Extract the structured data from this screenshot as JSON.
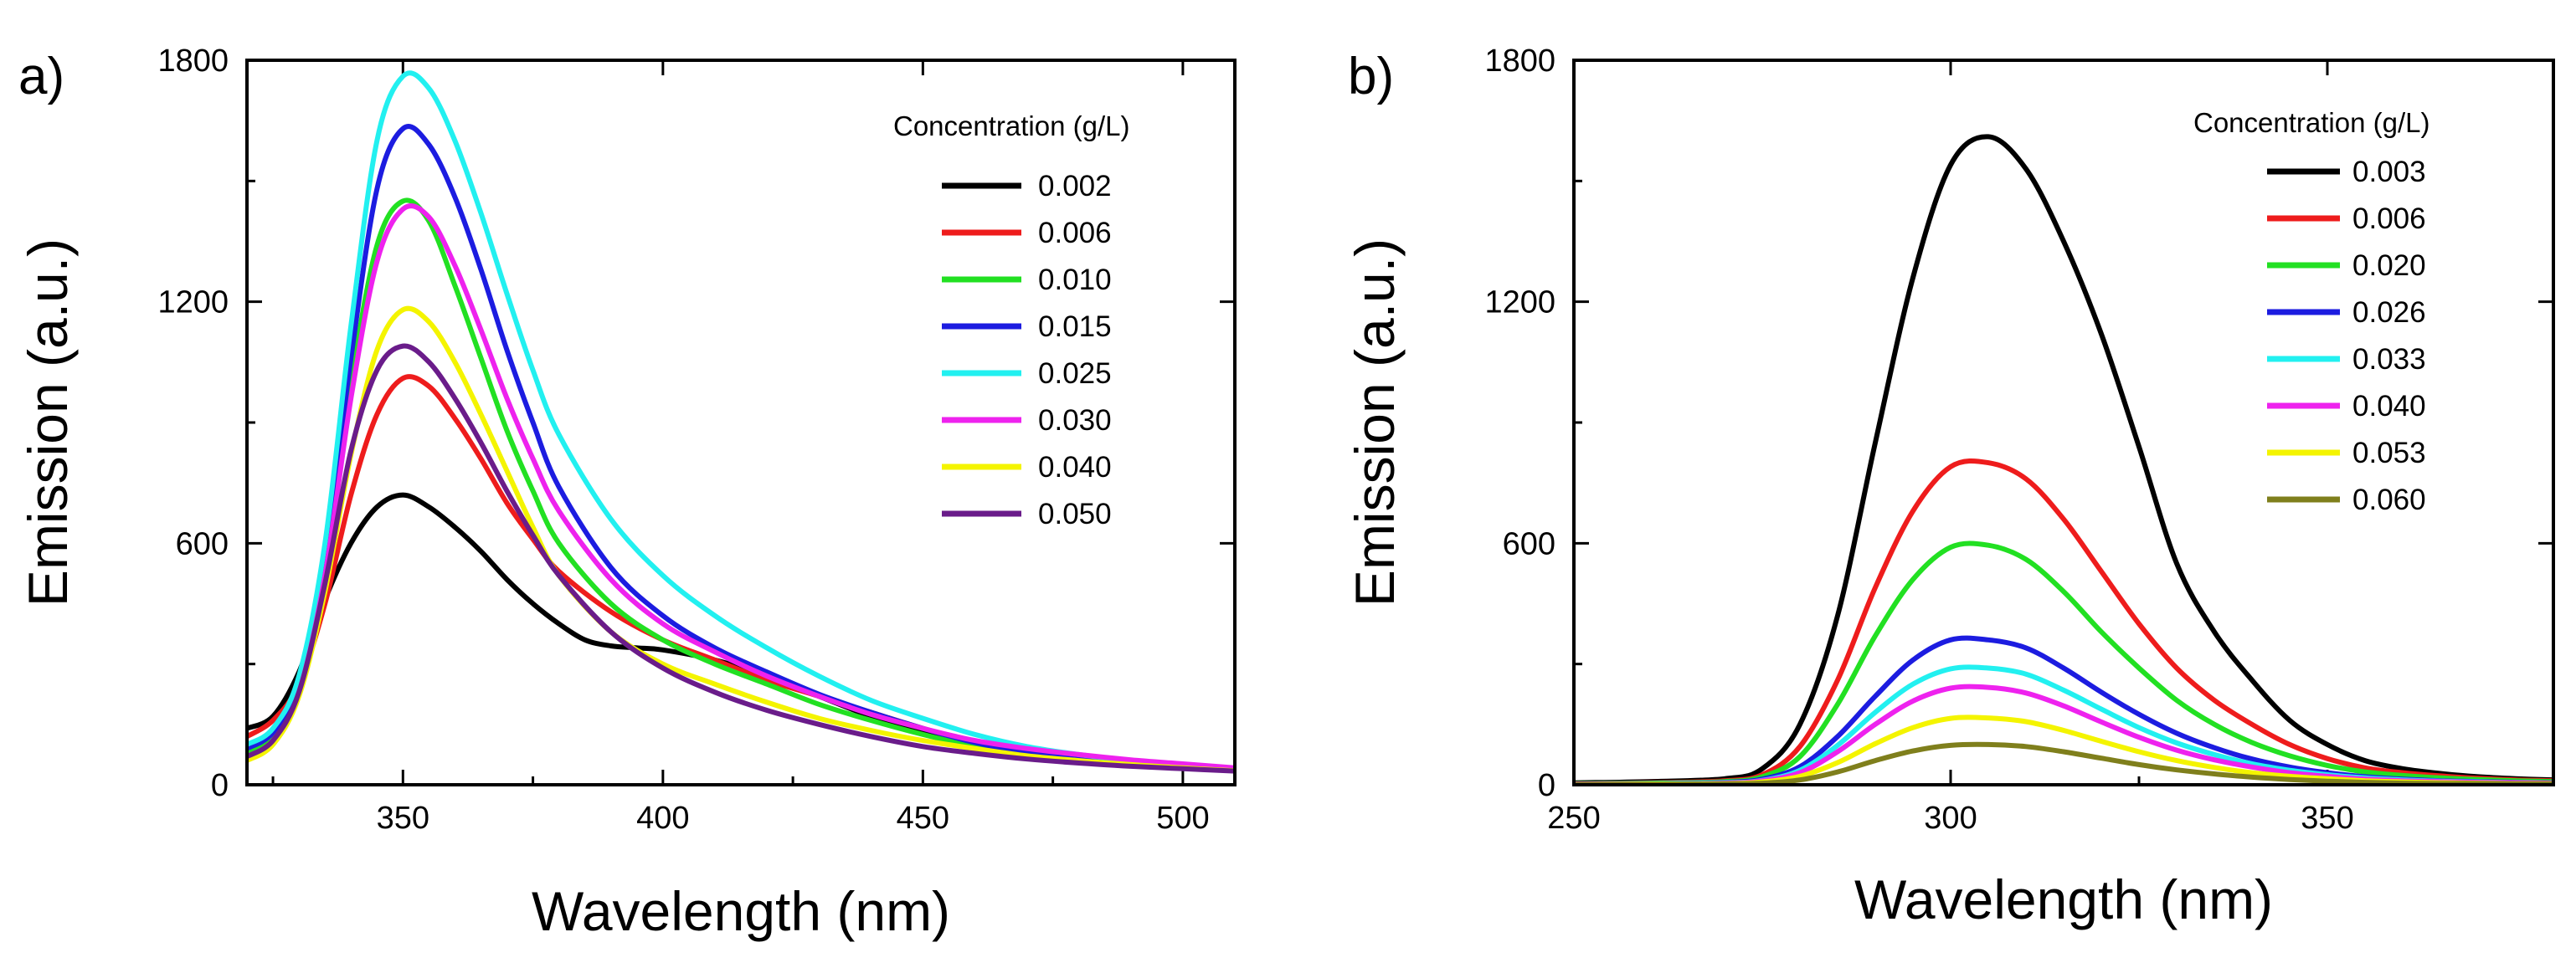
{
  "chart_data": [
    {
      "panel_label": "a)",
      "type": "line",
      "xlabel": "Wavelength (nm)",
      "ylabel": "Emission (a.u.)",
      "xlim": [
        320,
        510
      ],
      "ylim": [
        0,
        1800
      ],
      "xticks": [
        350,
        400,
        450,
        500
      ],
      "yticks": [
        0,
        600,
        1200,
        1800
      ],
      "legend_title": "Concentration (g/L)",
      "legend_position": "top-right",
      "series": [
        {
          "name": "0.002",
          "color": "#000000",
          "x": [
            320,
            325,
            330,
            335,
            340,
            345,
            350,
            355,
            360,
            365,
            370,
            375,
            380,
            385,
            390,
            395,
            400,
            410,
            420,
            430,
            440,
            450,
            460,
            470,
            480,
            490,
            500,
            510
          ],
          "y": [
            140,
            170,
            280,
            460,
            600,
            690,
            720,
            690,
            640,
            580,
            510,
            450,
            400,
            360,
            345,
            340,
            335,
            310,
            270,
            220,
            170,
            130,
            100,
            80,
            65,
            55,
            45,
            35
          ]
        },
        {
          "name": "0.006",
          "color": "#ee1c1c",
          "x": [
            320,
            325,
            330,
            335,
            340,
            345,
            350,
            355,
            360,
            365,
            370,
            375,
            380,
            390,
            400,
            410,
            420,
            430,
            440,
            450,
            460,
            470,
            480,
            490,
            500,
            510
          ],
          "y": [
            120,
            160,
            250,
            450,
            720,
            920,
            1010,
            990,
            910,
            810,
            700,
            610,
            530,
            430,
            360,
            310,
            260,
            220,
            180,
            140,
            105,
            80,
            65,
            55,
            45,
            35
          ]
        },
        {
          "name": "0.010",
          "color": "#22e022",
          "x": [
            320,
            325,
            330,
            335,
            340,
            345,
            350,
            355,
            360,
            365,
            370,
            375,
            380,
            390,
            400,
            410,
            420,
            430,
            440,
            450,
            460,
            470,
            480,
            490,
            500,
            510
          ],
          "y": [
            80,
            120,
            260,
            560,
            1000,
            1340,
            1450,
            1400,
            1240,
            1060,
            880,
            730,
            600,
            450,
            360,
            300,
            250,
            200,
            160,
            125,
            95,
            75,
            60,
            50,
            42,
            35
          ]
        },
        {
          "name": "0.015",
          "color": "#1c1ce0",
          "x": [
            320,
            325,
            330,
            335,
            340,
            345,
            350,
            355,
            360,
            365,
            370,
            375,
            380,
            390,
            400,
            410,
            420,
            430,
            440,
            450,
            460,
            470,
            480,
            490,
            500,
            510
          ],
          "y": [
            90,
            130,
            250,
            560,
            1060,
            1480,
            1630,
            1590,
            1460,
            1280,
            1080,
            900,
            740,
            540,
            420,
            340,
            280,
            225,
            180,
            140,
            105,
            80,
            65,
            55,
            45,
            38
          ]
        },
        {
          "name": "0.025",
          "color": "#22f0f0",
          "x": [
            320,
            325,
            330,
            335,
            340,
            345,
            350,
            355,
            360,
            365,
            370,
            375,
            380,
            390,
            400,
            410,
            420,
            430,
            440,
            450,
            460,
            470,
            480,
            490,
            500,
            510
          ],
          "y": [
            100,
            140,
            270,
            600,
            1140,
            1600,
            1760,
            1730,
            1600,
            1420,
            1220,
            1030,
            870,
            660,
            520,
            420,
            340,
            270,
            210,
            165,
            125,
            95,
            75,
            60,
            48,
            38
          ]
        },
        {
          "name": "0.030",
          "color": "#ee22ee",
          "x": [
            320,
            325,
            330,
            335,
            340,
            345,
            350,
            355,
            360,
            365,
            370,
            375,
            380,
            390,
            400,
            410,
            420,
            430,
            440,
            450,
            460,
            470,
            480,
            490,
            500,
            510
          ],
          "y": [
            70,
            110,
            230,
            520,
            960,
            1300,
            1430,
            1410,
            1290,
            1130,
            960,
            810,
            680,
            510,
            400,
            330,
            270,
            220,
            175,
            140,
            110,
            90,
            75,
            62,
            52,
            42
          ]
        },
        {
          "name": "0.040",
          "color": "#f4f400",
          "x": [
            320,
            325,
            330,
            335,
            340,
            345,
            350,
            355,
            360,
            365,
            370,
            375,
            380,
            390,
            400,
            410,
            420,
            430,
            440,
            450,
            460,
            470,
            480,
            490,
            500,
            510
          ],
          "y": [
            60,
            100,
            220,
            480,
            820,
            1080,
            1180,
            1150,
            1050,
            920,
            780,
            640,
            520,
            380,
            300,
            250,
            205,
            165,
            135,
            110,
            90,
            72,
            60,
            50,
            42,
            35
          ]
        },
        {
          "name": "0.050",
          "color": "#6a1c8a",
          "x": [
            320,
            325,
            330,
            335,
            340,
            345,
            350,
            355,
            360,
            365,
            370,
            375,
            380,
            390,
            400,
            410,
            420,
            430,
            440,
            450,
            460,
            470,
            480,
            490,
            500,
            510
          ],
          "y": [
            70,
            110,
            230,
            500,
            830,
            1030,
            1090,
            1050,
            960,
            850,
            730,
            620,
            520,
            380,
            290,
            230,
            185,
            150,
            120,
            95,
            78,
            64,
            54,
            46,
            40,
            34
          ]
        }
      ]
    },
    {
      "panel_label": "b)",
      "type": "line",
      "xlabel": "Wavelength (nm)",
      "ylabel": "Emission (a.u.)",
      "xlim": [
        250,
        380
      ],
      "ylim": [
        0,
        1800
      ],
      "xticks": [
        250,
        300,
        350
      ],
      "yticks": [
        0,
        600,
        1200,
        1800
      ],
      "legend_title": "Concentration (g/L)",
      "legend_position": "top-right",
      "series": [
        {
          "name": "0.003",
          "color": "#000000",
          "x": [
            250,
            260,
            270,
            275,
            280,
            285,
            290,
            295,
            300,
            305,
            310,
            315,
            320,
            325,
            330,
            335,
            340,
            345,
            350,
            355,
            360,
            365,
            370,
            375,
            380
          ],
          "y": [
            5,
            8,
            15,
            40,
            150,
            420,
            850,
            1260,
            1540,
            1610,
            1530,
            1350,
            1120,
            840,
            550,
            380,
            260,
            160,
            100,
            60,
            40,
            28,
            20,
            15,
            12
          ]
        },
        {
          "name": "0.006",
          "color": "#ee1c1c",
          "x": [
            250,
            260,
            270,
            275,
            280,
            285,
            290,
            295,
            300,
            305,
            310,
            315,
            320,
            325,
            330,
            335,
            340,
            345,
            350,
            355,
            360,
            365,
            370,
            375,
            380
          ],
          "y": [
            3,
            5,
            10,
            25,
            95,
            260,
            490,
            680,
            790,
            800,
            760,
            660,
            530,
            400,
            290,
            210,
            150,
            100,
            65,
            42,
            30,
            22,
            16,
            12,
            10
          ]
        },
        {
          "name": "0.020",
          "color": "#22e022",
          "x": [
            250,
            260,
            270,
            275,
            280,
            285,
            290,
            295,
            300,
            305,
            310,
            315,
            320,
            325,
            330,
            335,
            340,
            345,
            350,
            355,
            360,
            365,
            370,
            375,
            380
          ],
          "y": [
            3,
            4,
            8,
            20,
            70,
            200,
            370,
            510,
            590,
            595,
            560,
            480,
            380,
            290,
            210,
            150,
            105,
            72,
            48,
            32,
            23,
            17,
            13,
            10,
            8
          ]
        },
        {
          "name": "0.026",
          "color": "#1c1ce0",
          "x": [
            250,
            260,
            270,
            275,
            280,
            285,
            290,
            295,
            300,
            305,
            310,
            315,
            320,
            325,
            330,
            335,
            340,
            345,
            350,
            355,
            360,
            365,
            370,
            375,
            380
          ],
          "y": [
            2,
            3,
            6,
            14,
            45,
            120,
            220,
            310,
            360,
            360,
            340,
            290,
            230,
            175,
            128,
            92,
            64,
            44,
            30,
            20,
            14,
            10,
            8,
            6,
            5
          ]
        },
        {
          "name": "0.033",
          "color": "#22f0f0",
          "x": [
            250,
            260,
            270,
            275,
            280,
            285,
            290,
            295,
            300,
            305,
            310,
            315,
            320,
            325,
            330,
            335,
            340,
            345,
            350,
            355,
            360,
            365,
            370,
            375,
            380
          ],
          "y": [
            2,
            3,
            5,
            11,
            36,
            98,
            180,
            250,
            288,
            290,
            275,
            235,
            188,
            142,
            104,
            75,
            52,
            36,
            25,
            17,
            12,
            9,
            7,
            5,
            4
          ]
        },
        {
          "name": "0.040",
          "color": "#ee22ee",
          "x": [
            250,
            260,
            270,
            275,
            280,
            285,
            290,
            295,
            300,
            305,
            310,
            315,
            320,
            325,
            330,
            335,
            340,
            345,
            350,
            355,
            360,
            365,
            370,
            375,
            380
          ],
          "y": [
            2,
            2,
            4,
            10,
            30,
            82,
            150,
            208,
            240,
            242,
            228,
            196,
            156,
            118,
            86,
            62,
            44,
            30,
            21,
            14,
            10,
            8,
            6,
            5,
            4
          ]
        },
        {
          "name": "0.053",
          "color": "#f4f400",
          "x": [
            250,
            260,
            270,
            275,
            280,
            285,
            290,
            295,
            300,
            305,
            310,
            315,
            320,
            325,
            330,
            335,
            340,
            345,
            350,
            355,
            360,
            365,
            370,
            375,
            380
          ],
          "y": [
            1,
            2,
            3,
            7,
            21,
            55,
            102,
            142,
            165,
            166,
            157,
            135,
            108,
            82,
            60,
            43,
            30,
            21,
            15,
            10,
            7,
            5,
            4,
            3,
            3
          ]
        },
        {
          "name": "0.060",
          "color": "#7f7f1c",
          "x": [
            250,
            260,
            270,
            275,
            280,
            285,
            290,
            295,
            300,
            305,
            310,
            315,
            320,
            325,
            330,
            335,
            340,
            345,
            350,
            355,
            360,
            365,
            370,
            375,
            380
          ],
          "y": [
            1,
            1,
            2,
            4,
            12,
            32,
            60,
            84,
            98,
            100,
            95,
            82,
            66,
            50,
            37,
            27,
            19,
            13,
            9,
            6,
            4,
            3,
            3,
            2,
            2
          ]
        }
      ]
    }
  ]
}
